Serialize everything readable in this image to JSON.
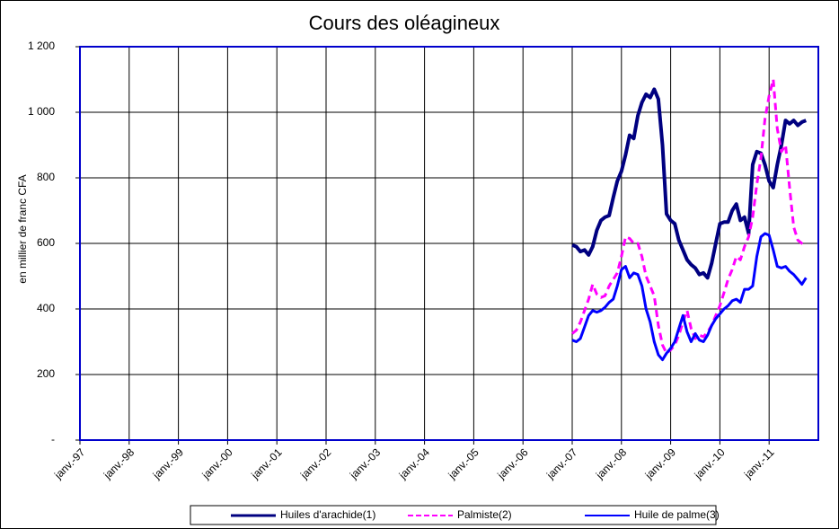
{
  "chart_data": {
    "type": "line",
    "title": "Cours des oléagineux",
    "y_label": "en millier de franc CFA",
    "x": [
      "2007-01",
      "2007-02",
      "2007-03",
      "2007-04",
      "2007-05",
      "2007-06",
      "2007-07",
      "2007-08",
      "2007-09",
      "2007-10",
      "2007-11",
      "2007-12",
      "2008-01",
      "2008-02",
      "2008-03",
      "2008-04",
      "2008-05",
      "2008-06",
      "2008-07",
      "2008-08",
      "2008-09",
      "2008-10",
      "2008-11",
      "2008-12",
      "2009-01",
      "2009-02",
      "2009-03",
      "2009-04",
      "2009-05",
      "2009-06",
      "2009-07",
      "2009-08",
      "2009-09",
      "2009-10",
      "2009-11",
      "2009-12",
      "2010-01",
      "2010-02",
      "2010-03",
      "2010-04",
      "2010-05",
      "2010-06",
      "2010-07",
      "2010-08",
      "2010-09",
      "2010-10",
      "2010-11",
      "2010-12",
      "2011-01",
      "2011-02",
      "2011-03",
      "2011-04",
      "2011-05",
      "2011-06",
      "2011-07",
      "2011-08",
      "2011-09",
      "2011-10"
    ],
    "series": [
      {
        "name": "Huiles d'arachide(1)",
        "color": "#000080",
        "dash": false,
        "width": 4,
        "values": [
          595,
          590,
          575,
          580,
          565,
          590,
          640,
          670,
          680,
          685,
          740,
          790,
          820,
          870,
          930,
          920,
          990,
          1030,
          1055,
          1045,
          1070,
          1040,
          900,
          690,
          670,
          660,
          610,
          580,
          550,
          535,
          525,
          505,
          510,
          495,
          540,
          600,
          660,
          665,
          665,
          700,
          720,
          670,
          680,
          630,
          840,
          880,
          875,
          840,
          790,
          770,
          840,
          900,
          975,
          965,
          975,
          960,
          970,
          975
        ]
      },
      {
        "name": "Palmiste(2)",
        "color": "#ff00ff",
        "dash": true,
        "width": 3,
        "values": [
          325,
          335,
          360,
          395,
          430,
          475,
          445,
          435,
          440,
          470,
          490,
          510,
          560,
          620,
          615,
          600,
          600,
          560,
          500,
          470,
          440,
          350,
          290,
          265,
          275,
          290,
          320,
          360,
          395,
          340,
          310,
          320,
          315,
          330,
          350,
          380,
          410,
          450,
          490,
          520,
          560,
          550,
          590,
          620,
          680,
          780,
          860,
          980,
          1050,
          1100,
          950,
          880,
          900,
          770,
          650,
          610,
          600,
          590
        ]
      },
      {
        "name": "Huile de palme(3)",
        "color": "#0000ff",
        "dash": false,
        "width": 3,
        "values": [
          305,
          300,
          310,
          345,
          380,
          395,
          390,
          395,
          405,
          420,
          430,
          470,
          520,
          530,
          495,
          510,
          505,
          470,
          400,
          360,
          300,
          260,
          245,
          265,
          280,
          300,
          340,
          380,
          330,
          300,
          325,
          305,
          300,
          320,
          350,
          370,
          385,
          400,
          410,
          425,
          430,
          420,
          460,
          460,
          470,
          560,
          620,
          630,
          625,
          580,
          530,
          525,
          530,
          515,
          505,
          490,
          475,
          495
        ]
      }
    ],
    "xlim": [
      "1997-01",
      "2012-01"
    ],
    "xticks": [
      {
        "value": "1997-01",
        "label": "janv.-97"
      },
      {
        "value": "1998-01",
        "label": "janv.-98"
      },
      {
        "value": "1999-01",
        "label": "janv.-99"
      },
      {
        "value": "2000-01",
        "label": "janv.-00"
      },
      {
        "value": "2001-01",
        "label": "janv.-01"
      },
      {
        "value": "2002-01",
        "label": "janv.-02"
      },
      {
        "value": "2003-01",
        "label": "janv.-03"
      },
      {
        "value": "2004-01",
        "label": "janv.-04"
      },
      {
        "value": "2005-01",
        "label": "janv.-05"
      },
      {
        "value": "2006-01",
        "label": "janv.-06"
      },
      {
        "value": "2007-01",
        "label": "janv.-07"
      },
      {
        "value": "2008-01",
        "label": "janv.-08"
      },
      {
        "value": "2009-01",
        "label": "janv.-09"
      },
      {
        "value": "2010-01",
        "label": "janv.-10"
      },
      {
        "value": "2011-01",
        "label": "janv.-11"
      }
    ],
    "ylim": [
      0,
      1200
    ],
    "yticks": [
      {
        "value": 0,
        "label": "-"
      },
      200,
      400,
      600,
      800,
      {
        "value": 1000,
        "label": "1 000"
      },
      {
        "value": 1200,
        "label": "1 200"
      }
    ],
    "grid": true
  }
}
